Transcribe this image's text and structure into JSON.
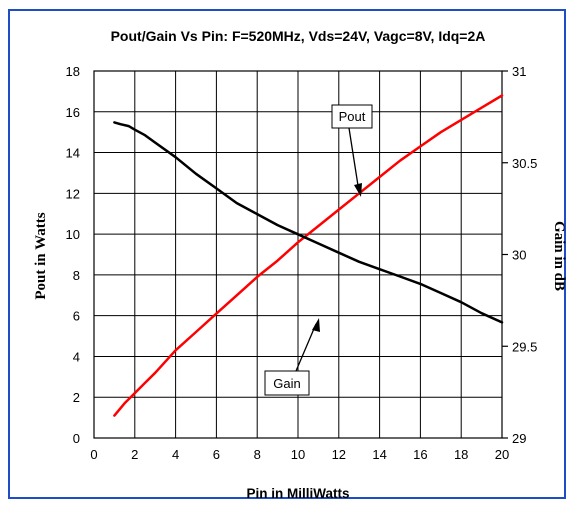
{
  "chart_data": {
    "type": "line",
    "title": "Pout/Gain Vs Pin: F=520MHz, Vds=24V, Vagc=8V, Idq=2A",
    "xlabel": "Pin in MilliWatts",
    "ylabel_left": "Pout in Watts",
    "ylabel_right": "Gain in dB",
    "xlim": [
      0,
      20
    ],
    "ylim_left": [
      0,
      18
    ],
    "ylim_right": [
      29,
      31
    ],
    "x_ticks": [
      0,
      2,
      4,
      6,
      8,
      10,
      12,
      14,
      16,
      18,
      20
    ],
    "y_left_ticks": [
      0,
      2,
      4,
      6,
      8,
      10,
      12,
      14,
      16,
      18
    ],
    "y_right_ticks": [
      "29",
      "29.5",
      "30",
      "30.5",
      "31"
    ],
    "grid": true,
    "series": [
      {
        "name": "Pout",
        "axis": "left",
        "color": "#ff0000",
        "x": [
          1,
          1.5,
          2,
          2.5,
          3,
          4,
          5,
          6,
          7,
          8,
          9,
          10,
          11,
          12,
          13,
          14,
          15,
          16,
          17,
          18,
          19,
          20
        ],
        "y": [
          1.1,
          1.7,
          2.2,
          2.7,
          3.2,
          4.3,
          5.2,
          6.1,
          7.0,
          7.9,
          8.7,
          9.6,
          10.4,
          11.2,
          12.0,
          12.8,
          13.6,
          14.3,
          15.0,
          15.6,
          16.2,
          16.8
        ]
      },
      {
        "name": "Gain",
        "axis": "right",
        "color": "#000000",
        "x": [
          1,
          1.3,
          1.7,
          2,
          2.5,
          3,
          4,
          5,
          6,
          7,
          8,
          9,
          10,
          11,
          12,
          13,
          14,
          15,
          16,
          17,
          18,
          19,
          20
        ],
        "y": [
          30.72,
          30.71,
          30.7,
          30.68,
          30.65,
          30.61,
          30.53,
          30.44,
          30.36,
          30.28,
          30.22,
          30.16,
          30.11,
          30.06,
          30.01,
          29.96,
          29.92,
          29.88,
          29.84,
          29.79,
          29.74,
          29.68,
          29.63
        ]
      }
    ],
    "annotations": [
      {
        "text": "Pout",
        "points_to_series": "Pout"
      },
      {
        "text": "Gain",
        "points_to_series": "Gain"
      }
    ]
  }
}
